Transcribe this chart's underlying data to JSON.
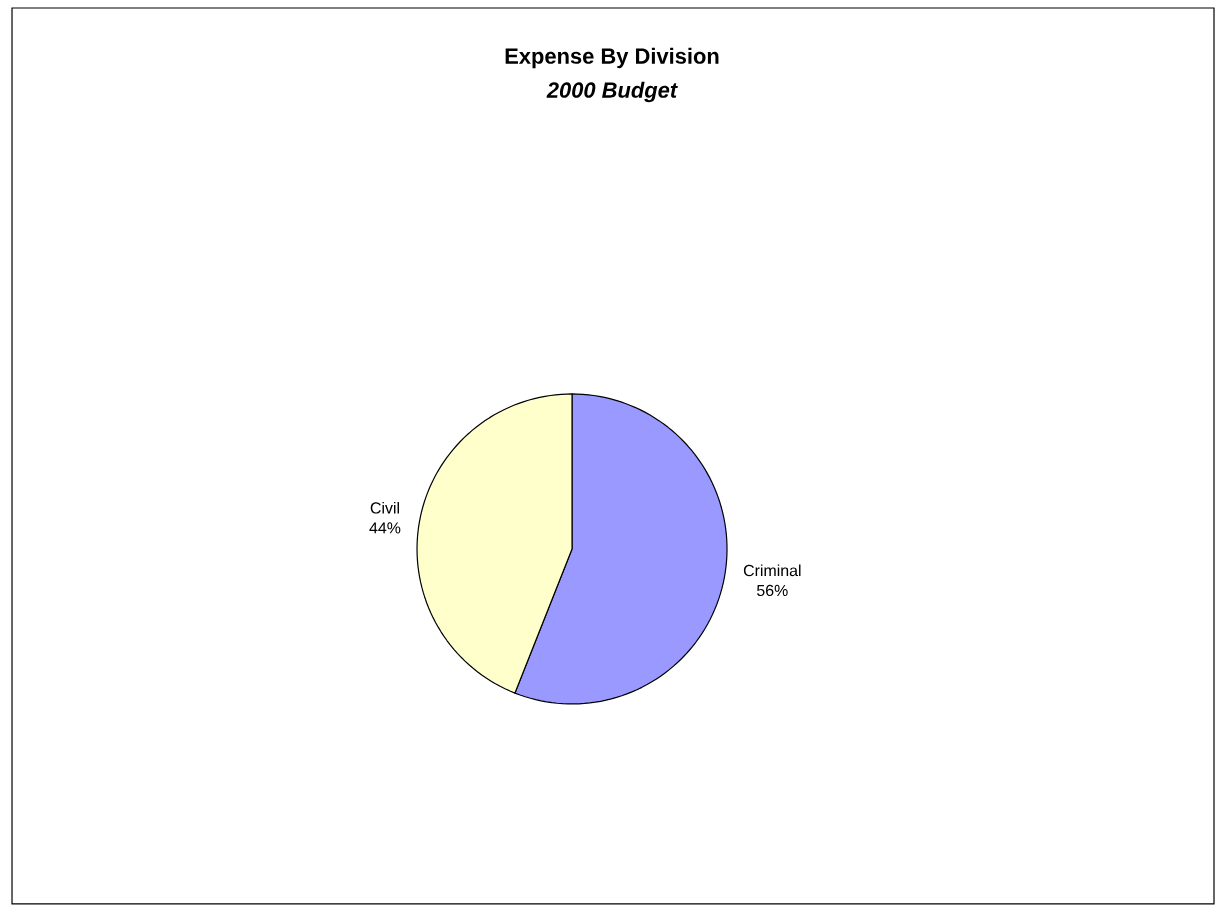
{
  "chart_data": {
    "type": "pie",
    "title": "Expense By Division",
    "subtitle": "2000 Budget",
    "categories": [
      "Criminal",
      "Civil"
    ],
    "values": [
      56,
      44
    ],
    "colors": [
      "#9999ff",
      "#ffffcc"
    ],
    "value_labels": [
      "56%",
      "44%"
    ]
  }
}
